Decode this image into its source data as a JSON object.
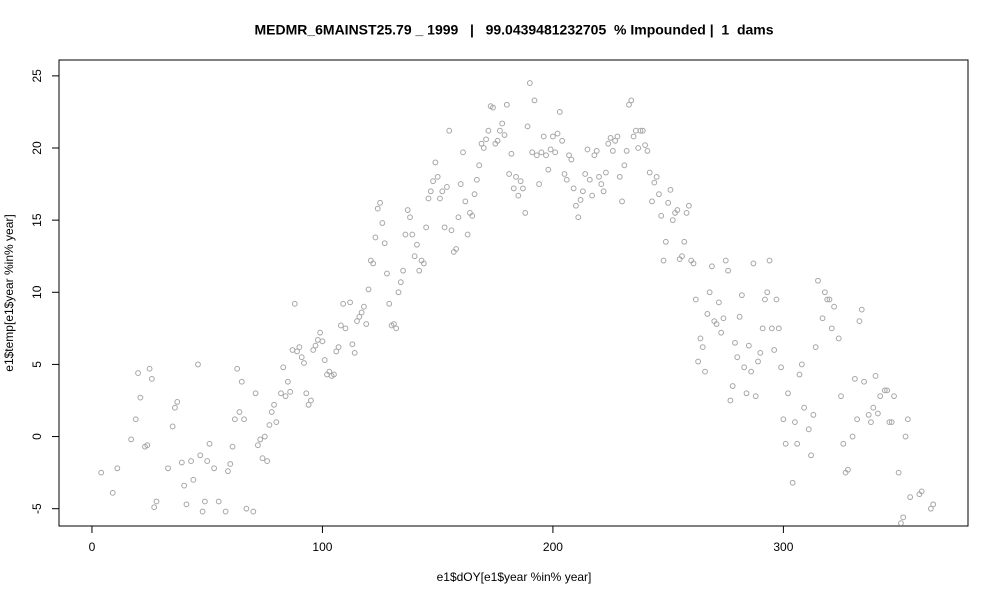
{
  "chart_data": {
    "type": "scatter",
    "title": "MEDMR_6MAINST25.79 _ 1999   |   99.0439481232705  % Impounded |  1  dams",
    "xlabel": "e1$dOY[e1$year %in% year]",
    "ylabel": "e1$temp[e1$year %in% year]",
    "color": "#a6a6a6",
    "xlim": [
      -14.3,
      380.1
    ],
    "ylim": [
      -6.2,
      26.1
    ],
    "xticks": [
      0,
      100,
      200,
      300
    ],
    "yticks": [
      -5,
      0,
      5,
      10,
      15,
      20,
      25
    ],
    "x": [
      4,
      9,
      11,
      17,
      19,
      20,
      21,
      23,
      24,
      25,
      26,
      27,
      28,
      33,
      35,
      36,
      37,
      39,
      40,
      41,
      43,
      44,
      46,
      47,
      48,
      49,
      50,
      51,
      53,
      55,
      58,
      59,
      60,
      61,
      62,
      63,
      64,
      65,
      66,
      67,
      70,
      71,
      72,
      73,
      74,
      75,
      76,
      77,
      78,
      79,
      80,
      82,
      83,
      84,
      85,
      86,
      87,
      88,
      89,
      90,
      91,
      92,
      93,
      94,
      95,
      96,
      97,
      98,
      99,
      100,
      101,
      102,
      103,
      104,
      105,
      106,
      107,
      108,
      109,
      110,
      112,
      113,
      114,
      115,
      116,
      117,
      118,
      119,
      120,
      121,
      122,
      123,
      124,
      125,
      126,
      127,
      128,
      129,
      130,
      131,
      132,
      133,
      134,
      135,
      136,
      137,
      138,
      139,
      140,
      141,
      142,
      143,
      144,
      145,
      146,
      147,
      148,
      149,
      150,
      151,
      152,
      153,
      154,
      155,
      156,
      157,
      158,
      159,
      160,
      161,
      162,
      163,
      164,
      165,
      166,
      167,
      168,
      169,
      170,
      171,
      172,
      173,
      174,
      175,
      176,
      177,
      178,
      179,
      180,
      181,
      182,
      183,
      184,
      185,
      186,
      187,
      188,
      189,
      190,
      191,
      192,
      193,
      194,
      195,
      196,
      197,
      198,
      199,
      200,
      201,
      202,
      203,
      204,
      205,
      206,
      207,
      208,
      209,
      210,
      211,
      212,
      213,
      214,
      215,
      216,
      217,
      218,
      219,
      220,
      221,
      222,
      223,
      224,
      225,
      226,
      227,
      228,
      229,
      230,
      231,
      232,
      233,
      234,
      235,
      236,
      237,
      238,
      239,
      240,
      241,
      242,
      243,
      244,
      245,
      246,
      247,
      248,
      249,
      250,
      251,
      252,
      253,
      254,
      255,
      256,
      257,
      258,
      259,
      260,
      261,
      262,
      263,
      264,
      265,
      266,
      267,
      268,
      269,
      270,
      271,
      272,
      273,
      274,
      275,
      276,
      277,
      278,
      279,
      280,
      281,
      282,
      283,
      284,
      285,
      286,
      287,
      288,
      289,
      290,
      291,
      292,
      293,
      294,
      295,
      296,
      297,
      298,
      299,
      300,
      301,
      302,
      304,
      305,
      306,
      307,
      308,
      309,
      311,
      312,
      313,
      314,
      315,
      317,
      318,
      319,
      320,
      321,
      322,
      324,
      325,
      326,
      327,
      328,
      330,
      331,
      332,
      333,
      334,
      335,
      337,
      338,
      339,
      340,
      341,
      342,
      344,
      345,
      346,
      347,
      348,
      350,
      351,
      352,
      353,
      354,
      355,
      359,
      360,
      364,
      365
    ],
    "values": [
      -2.5,
      -3.9,
      -2.2,
      -0.2,
      1.2,
      4.4,
      2.7,
      -0.7,
      -0.6,
      4.7,
      4.0,
      -4.9,
      -4.5,
      -2.2,
      0.7,
      2.0,
      2.4,
      -1.8,
      -3.4,
      -4.7,
      -1.7,
      -3.0,
      5.0,
      -1.3,
      -5.2,
      -4.5,
      -1.7,
      -0.5,
      -2.2,
      -4.5,
      -5.2,
      -2.4,
      -1.9,
      -0.7,
      1.2,
      4.7,
      1.7,
      3.8,
      1.2,
      -5.0,
      -5.2,
      3.0,
      -0.6,
      -0.2,
      -1.5,
      0.0,
      -1.7,
      0.8,
      1.7,
      2.2,
      1.0,
      3.0,
      4.8,
      2.8,
      3.8,
      3.1,
      6.0,
      9.2,
      5.9,
      6.2,
      5.5,
      5.1,
      3.0,
      2.2,
      2.5,
      6.0,
      6.3,
      6.7,
      7.2,
      6.6,
      5.3,
      4.3,
      4.5,
      4.2,
      4.3,
      5.9,
      6.2,
      7.7,
      9.2,
      7.5,
      9.3,
      6.4,
      5.8,
      8.0,
      8.3,
      8.6,
      9.0,
      7.8,
      10.2,
      12.2,
      12.0,
      13.8,
      15.8,
      16.2,
      14.8,
      13.4,
      11.3,
      9.2,
      7.7,
      7.8,
      7.5,
      10.0,
      10.7,
      11.5,
      14.0,
      15.7,
      15.2,
      14.0,
      12.5,
      13.3,
      11.5,
      12.2,
      12.0,
      14.5,
      16.5,
      17.0,
      17.7,
      19.0,
      18.0,
      16.5,
      17.0,
      14.5,
      17.3,
      21.2,
      14.3,
      12.8,
      13.0,
      15.2,
      17.5,
      19.7,
      16.3,
      14.0,
      15.5,
      15.3,
      16.8,
      17.8,
      18.8,
      20.3,
      20.0,
      20.6,
      21.2,
      22.9,
      22.8,
      20.3,
      20.5,
      21.2,
      21.7,
      20.9,
      23.0,
      18.2,
      19.6,
      17.2,
      18.0,
      16.7,
      17.7,
      17.2,
      15.5,
      21.5,
      24.5,
      19.7,
      23.3,
      19.5,
      17.5,
      19.7,
      20.8,
      19.5,
      18.5,
      19.9,
      20.8,
      19.7,
      21.0,
      22.5,
      20.5,
      18.2,
      17.8,
      19.5,
      19.2,
      17.2,
      16.0,
      15.2,
      16.4,
      17.0,
      18.2,
      19.9,
      17.8,
      16.7,
      19.5,
      19.8,
      18.0,
      17.5,
      17.0,
      18.3,
      20.3,
      20.7,
      19.8,
      20.5,
      20.8,
      18.0,
      16.3,
      18.8,
      19.8,
      23.0,
      23.3,
      20.8,
      21.2,
      20.0,
      21.2,
      21.2,
      20.2,
      19.8,
      18.3,
      16.3,
      17.6,
      18.0,
      16.8,
      15.3,
      12.2,
      13.5,
      16.2,
      17.1,
      15.0,
      15.5,
      15.7,
      12.3,
      12.5,
      13.5,
      15.5,
      16.0,
      12.2,
      12.0,
      9.5,
      5.2,
      6.8,
      6.2,
      4.5,
      8.5,
      10.0,
      11.8,
      8.0,
      7.8,
      9.3,
      7.2,
      8.2,
      12.2,
      11.5,
      2.5,
      3.5,
      6.5,
      5.5,
      8.3,
      9.8,
      4.8,
      3.0,
      6.3,
      4.5,
      12.0,
      2.8,
      5.2,
      5.8,
      7.5,
      9.5,
      10.0,
      12.2,
      7.5,
      6.0,
      9.5,
      7.5,
      4.8,
      1.2,
      -0.5,
      3.0,
      -3.2,
      1.0,
      -0.5,
      4.3,
      5.0,
      2.0,
      0.5,
      -1.3,
      1.5,
      6.2,
      10.8,
      8.2,
      10.0,
      9.5,
      9.5,
      7.5,
      9.0,
      6.8,
      2.8,
      -0.5,
      -2.5,
      -2.3,
      0.0,
      4.0,
      1.2,
      8.0,
      8.8,
      3.8,
      1.5,
      1.0,
      2.0,
      4.2,
      1.6,
      2.8,
      3.2,
      3.2,
      1.0,
      1.0,
      2.8,
      -2.5,
      -6.0,
      -5.6,
      0.0,
      1.2,
      -4.2,
      -4.0,
      -3.8,
      -5.0,
      -4.7
    ]
  }
}
